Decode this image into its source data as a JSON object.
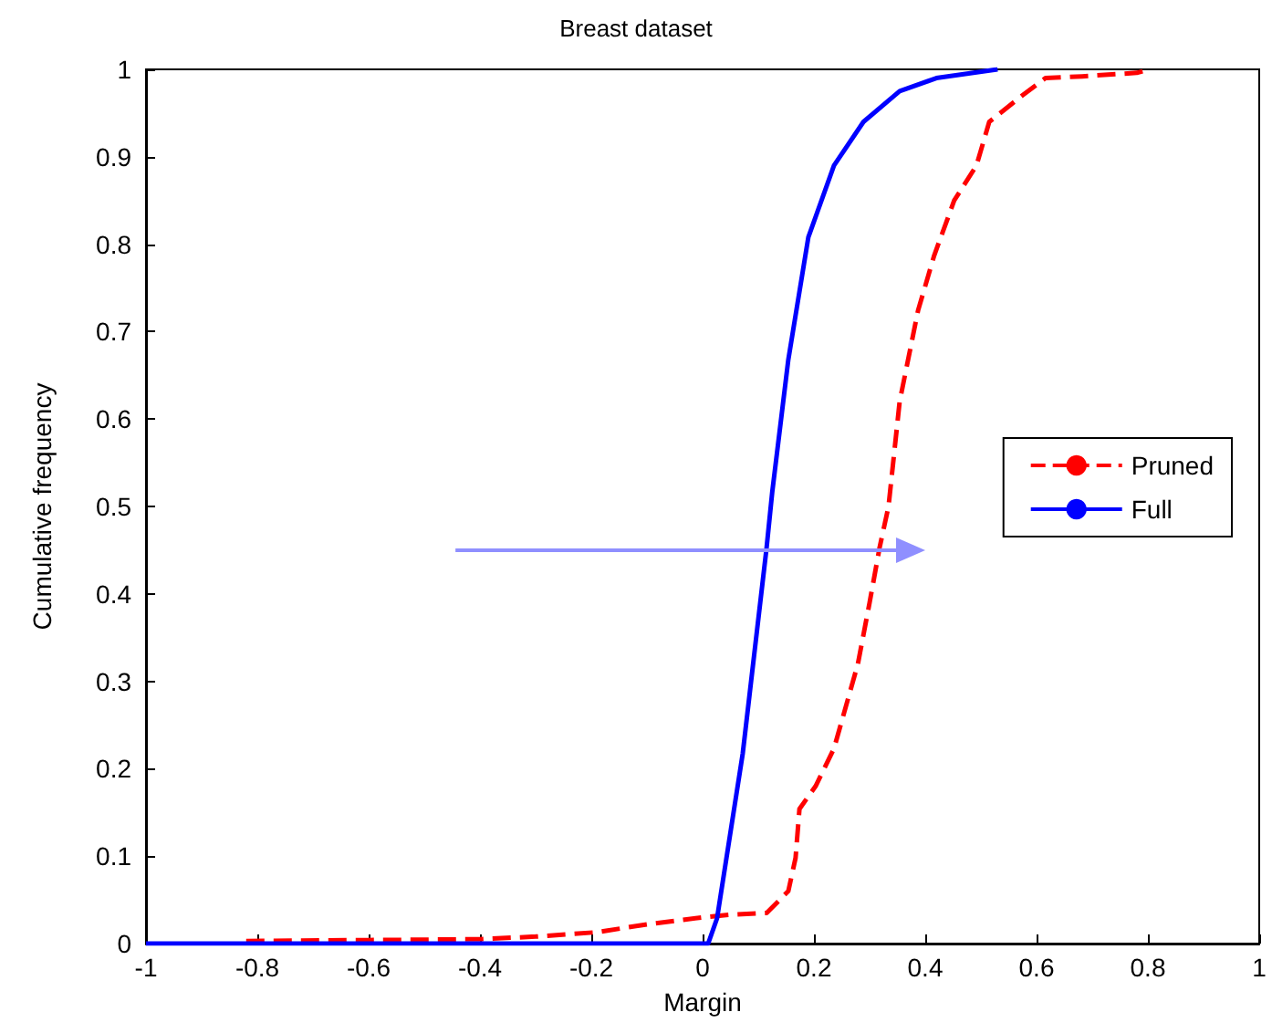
{
  "chart_data": {
    "type": "line",
    "title": "Breast dataset",
    "xlabel": "Margin",
    "ylabel": "Cumulative frequency",
    "xlim": [
      -1,
      1
    ],
    "xticks": [
      -1,
      -0.8,
      -0.6,
      -0.4,
      -0.2,
      0,
      0.2,
      0.4,
      0.6,
      0.8,
      1
    ],
    "ylim": [
      0,
      1
    ],
    "yticks": [
      0,
      0.1,
      0.2,
      0.3,
      0.4,
      0.5,
      0.6,
      0.7,
      0.8,
      0.9,
      1
    ],
    "grid": false,
    "legend": "right",
    "marker": "none",
    "series": [
      {
        "name": "Pruned",
        "color": "#ff0000",
        "line_style": "dashed",
        "x": [
          -0.82,
          -0.6,
          -0.4,
          -0.3,
          -0.19,
          -0.1,
          0,
          0.05,
          0.115,
          0.154,
          0.167,
          0.174,
          0.203,
          0.236,
          0.252,
          0.279,
          0.3,
          0.318,
          0.334,
          0.354,
          0.387,
          0.416,
          0.452,
          0.492,
          0.515,
          0.574,
          0.616,
          0.682,
          0.78,
          0.803
        ],
        "values": [
          0.003,
          0.004,
          0.005,
          0.008,
          0.013,
          0.022,
          0.03,
          0.033,
          0.035,
          0.06,
          0.098,
          0.154,
          0.18,
          0.223,
          0.259,
          0.32,
          0.39,
          0.453,
          0.5,
          0.62,
          0.724,
          0.787,
          0.85,
          0.89,
          0.94,
          0.97,
          0.99,
          0.992,
          0.996,
          1.0
        ]
      },
      {
        "name": "Full",
        "color": "#0000ff",
        "line_style": "solid",
        "x": [
          -1,
          0.01,
          0.026,
          0.072,
          0.115,
          0.125,
          0.154,
          0.19,
          0.236,
          0.289,
          0.354,
          0.42,
          0.53
        ],
        "values": [
          0,
          0,
          0.029,
          0.217,
          0.453,
          0.516,
          0.668,
          0.808,
          0.89,
          0.94,
          0.975,
          0.99,
          1.0
        ]
      }
    ]
  }
}
